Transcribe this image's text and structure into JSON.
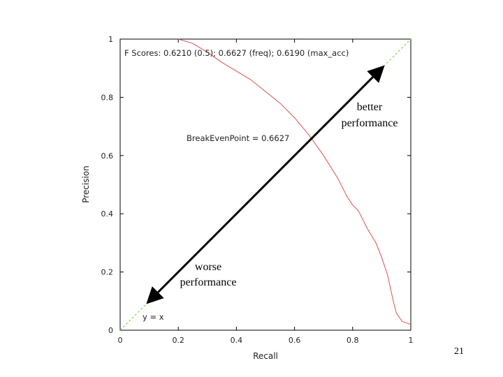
{
  "chart_data": {
    "type": "line",
    "xlabel": "Recall",
    "ylabel": "Precision",
    "xlim": [
      0,
      1
    ],
    "ylim": [
      0,
      1
    ],
    "x_ticks": [
      "0",
      "0.2",
      "0.4",
      "0.6",
      "0.8",
      "1"
    ],
    "y_ticks": [
      "0",
      "0.2",
      "0.4",
      "0.6",
      "0.8",
      "1"
    ],
    "grid": false,
    "series": [
      {
        "color": "#e05050",
        "x": [
          0.2,
          0.25,
          0.3,
          0.35,
          0.4,
          0.45,
          0.5,
          0.55,
          0.6,
          0.65,
          0.7,
          0.75,
          0.78,
          0.8,
          0.82,
          0.85,
          0.88,
          0.9,
          0.92,
          0.94,
          0.95,
          0.97,
          1.0
        ],
        "y": [
          1.0,
          0.985,
          0.955,
          0.92,
          0.89,
          0.86,
          0.82,
          0.78,
          0.73,
          0.67,
          0.6,
          0.52,
          0.46,
          0.43,
          0.41,
          0.35,
          0.3,
          0.25,
          0.19,
          0.1,
          0.06,
          0.03,
          0.02
        ]
      },
      {
        "name": "y = x",
        "color": "#66cc44",
        "style": "dashed",
        "x": [
          0,
          1
        ],
        "y": [
          0,
          1
        ]
      }
    ],
    "annotations": {
      "f_scores": "F Scores: 0.6210 (0.5); 0.6627 (freq); 0.6190 (max_acc)",
      "break_even": "BreakEvenPoint = 0.6627",
      "yx_label": "y = x",
      "better_1": "better",
      "better_2": "performance",
      "worse_1": "worse",
      "worse_2": "performance"
    },
    "arrow": {
      "from": [
        0.1,
        0.1
      ],
      "to": [
        0.9,
        0.9
      ]
    }
  },
  "slide_number": "21"
}
